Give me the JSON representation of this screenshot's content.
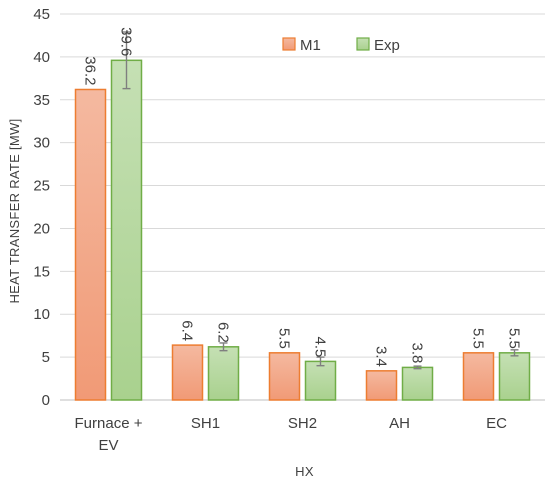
{
  "chart_data": {
    "type": "bar",
    "title": "",
    "xlabel": "HX",
    "ylabel": "HEAT TRANSFER RATE [MW]",
    "ylim": [
      0,
      45
    ],
    "y_ticks": [
      0,
      5,
      10,
      15,
      20,
      25,
      30,
      35,
      40,
      45
    ],
    "categories": [
      [
        "Furnace +",
        "EV"
      ],
      [
        "SH1"
      ],
      [
        "SH2"
      ],
      [
        "AH"
      ],
      [
        "EC"
      ]
    ],
    "series": [
      {
        "name": "M1",
        "values": [
          36.2,
          6.4,
          5.5,
          3.4,
          5.5
        ],
        "labels": [
          "36.2",
          "6.4",
          "5.5",
          "3.4",
          "5.5"
        ],
        "color_top": "#f4b9a0",
        "color_bottom": "#f19a76",
        "stroke": "#ed7d31"
      },
      {
        "name": "Exp",
        "values": [
          39.6,
          6.2,
          4.5,
          3.8,
          5.5
        ],
        "labels": [
          "39.6",
          "6.2",
          "4.5",
          "3.8",
          "5.5"
        ],
        "error": [
          3.3,
          0.45,
          0.5,
          0.15,
          0.35
        ],
        "color_top": "#c5e0b4",
        "color_bottom": "#a9d18e",
        "stroke": "#70ad47"
      }
    ],
    "grid": true,
    "legend_position": "top-right"
  }
}
